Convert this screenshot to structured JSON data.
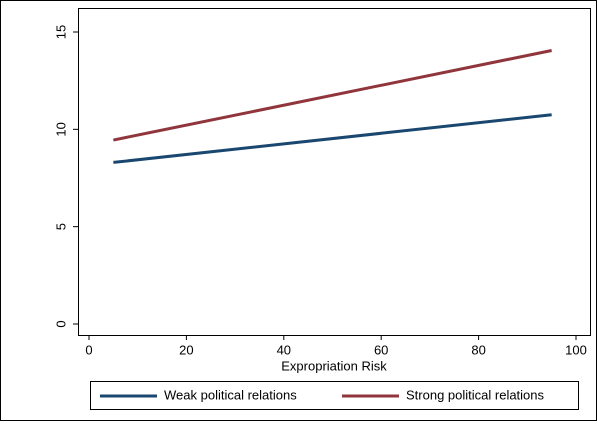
{
  "chart_data": {
    "type": "line",
    "x_label": "Expropriation Risk",
    "x": [
      5,
      95
    ],
    "series": [
      {
        "name": "Weak political relations",
        "color": "#1a476f",
        "values": [
          8.3,
          10.75
        ]
      },
      {
        "name": "Strong political relations",
        "color": "#90353b",
        "values": [
          9.45,
          14.05
        ]
      }
    ],
    "xlim": [
      0,
      100
    ],
    "xticks": [
      0,
      20,
      40,
      60,
      80,
      100
    ],
    "ylim": [
      0,
      15
    ],
    "yticks": [
      0,
      5,
      10,
      15
    ],
    "grid": false,
    "legend": "bottom"
  }
}
